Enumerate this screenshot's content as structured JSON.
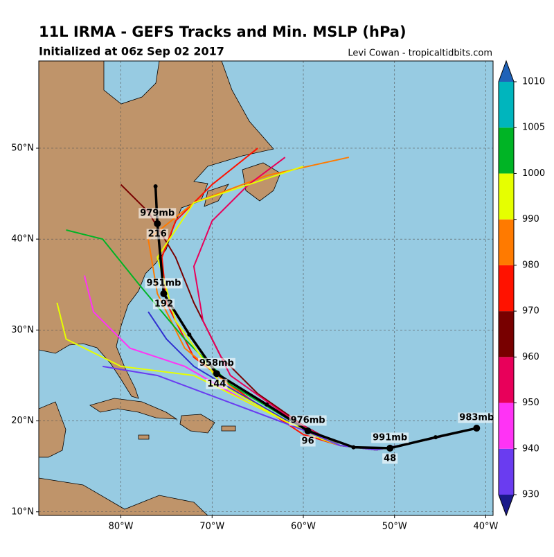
{
  "title": "11L IRMA - GEFS Tracks and Min. MSLP (hPa)",
  "subtitle": "Initialized at 06z Sep 02 2017",
  "credit": "Levi Cowan - tropicaltidbits.com",
  "map": {
    "lon_range": [
      -89,
      -39.2
    ],
    "lat_range": [
      9.6,
      59.6
    ],
    "lon_ticks": [
      {
        "value": -80,
        "label": "80°W"
      },
      {
        "value": -70,
        "label": "70°W"
      },
      {
        "value": -60,
        "label": "60°W"
      },
      {
        "value": -50,
        "label": "50°W"
      },
      {
        "value": -40,
        "label": "40°W"
      }
    ],
    "lat_ticks": [
      {
        "value": 10,
        "label": "10°N"
      },
      {
        "value": 20,
        "label": "20°N"
      },
      {
        "value": 30,
        "label": "30°N"
      },
      {
        "value": 40,
        "label": "40°N"
      },
      {
        "value": 50,
        "label": "50°N"
      }
    ],
    "ocean_color": "#97cbe2",
    "land_color": "#bf946a",
    "grid": true
  },
  "colorbar": {
    "ticks": [
      930,
      940,
      950,
      960,
      970,
      980,
      990,
      1000,
      1005,
      1010
    ],
    "colors": [
      "#6a3cf0",
      "#ff33f5",
      "#e8005a",
      "#780000",
      "#ff1200",
      "#ff7a00",
      "#e6ff00",
      "#00b425",
      "#00b5bd"
    ],
    "under_color": "#1a1a8a",
    "over_color": "#1f62b8"
  },
  "member_tracks": [
    {
      "color": "#ff1200",
      "lon": [
        -41,
        -46,
        -52,
        -56,
        -60,
        -66,
        -72,
        -75,
        -75.5,
        -74,
        -70,
        -65
      ],
      "lat": [
        19.2,
        18,
        16.8,
        17.3,
        18.5,
        22.5,
        27,
        33,
        38,
        42,
        46,
        50
      ]
    },
    {
      "color": "#ff7a00",
      "lon": [
        -41,
        -46,
        -52,
        -56,
        -60,
        -67,
        -73,
        -76,
        -77,
        -72,
        -64,
        -55
      ],
      "lat": [
        19.2,
        18,
        16.8,
        17.3,
        19,
        23,
        28,
        34,
        40,
        44,
        47,
        49
      ]
    },
    {
      "color": "#ff33f5",
      "lon": [
        -41,
        -46,
        -52,
        -56,
        -59,
        -66,
        -73,
        -79,
        -83,
        -84
      ],
      "lat": [
        19.2,
        18,
        16.8,
        17.3,
        18.5,
        22,
        26,
        28,
        32,
        36
      ]
    },
    {
      "color": "#e6ff00",
      "lon": [
        -41,
        -46,
        -52,
        -56,
        -58,
        -65,
        -72,
        -80,
        -86,
        -87
      ],
      "lat": [
        19.2,
        18,
        16.8,
        17.3,
        18,
        21.5,
        25,
        26,
        29,
        33
      ]
    },
    {
      "color": "#780000",
      "lon": [
        -41,
        -46,
        -52,
        -56,
        -60,
        -65,
        -69,
        -72,
        -74,
        -77,
        -80
      ],
      "lat": [
        19.2,
        18,
        16.8,
        17.3,
        19.5,
        23,
        27,
        33,
        38,
        43,
        46
      ]
    },
    {
      "color": "#e8005a",
      "lon": [
        -41,
        -46,
        -52,
        -56,
        -61,
        -68,
        -71,
        -72,
        -70,
        -66,
        -62
      ],
      "lat": [
        19.2,
        18,
        16.8,
        17.3,
        20,
        25,
        31,
        37,
        42,
        46,
        49
      ]
    },
    {
      "color": "#3030d0",
      "lon": [
        -41,
        -46,
        -52,
        -56,
        -60,
        -67,
        -72,
        -75,
        -77
      ],
      "lat": [
        19.2,
        18,
        16.8,
        17.3,
        19,
        23,
        26,
        29,
        32
      ]
    },
    {
      "color": "#00b425",
      "lon": [
        -41,
        -46,
        -52,
        -56,
        -61,
        -68,
        -73,
        -78,
        -82,
        -86
      ],
      "lat": [
        19.2,
        18,
        16.8,
        17.3,
        19.8,
        24,
        29,
        35,
        40,
        41
      ]
    },
    {
      "color": "#e6ff00",
      "lon": [
        -41,
        -46,
        -52,
        -56,
        -62,
        -69,
        -74,
        -76,
        -72,
        -60
      ],
      "lat": [
        19.2,
        18,
        16.8,
        17.3,
        20,
        24,
        31,
        38,
        44,
        48
      ]
    },
    {
      "color": "#6a3cf0",
      "lon": [
        -41,
        -46,
        -52,
        -56,
        -60,
        -68,
        -76,
        -82
      ],
      "lat": [
        19.2,
        18,
        16.8,
        17.3,
        19,
        22,
        25,
        26
      ]
    }
  ],
  "mean_track": {
    "lon": [
      -41,
      -45.5,
      -50.5,
      -54.5,
      -59.5,
      -64,
      -69.5,
      -72.5,
      -75.3,
      -76,
      -76.2
    ],
    "lat": [
      19.2,
      18.2,
      17.0,
      17.1,
      18.9,
      21.8,
      25.2,
      29.5,
      34.0,
      41.7,
      45.8
    ]
  },
  "annotations": [
    {
      "lon": -41,
      "lat": 19.2,
      "pressure": "983mb"
    },
    {
      "lon": -50.5,
      "lat": 17.0,
      "pressure": "991mb",
      "hour": 48
    },
    {
      "lon": -59.5,
      "lat": 18.9,
      "pressure": "976mb",
      "hour": 96
    },
    {
      "lon": -69.5,
      "lat": 25.2,
      "pressure": "958mb",
      "hour": 144
    },
    {
      "lon": -75.3,
      "lat": 34.0,
      "pressure": "951mb",
      "hour": 192
    },
    {
      "lon": -76,
      "lat": 41.7,
      "pressure": "979mb",
      "hour": 216
    }
  ]
}
